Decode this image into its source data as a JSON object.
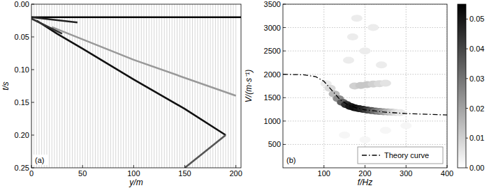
{
  "chart_data": [
    {
      "type": "wiggle",
      "panel_label": "(a)",
      "x_label": "y/m",
      "y_label": "t/s",
      "xlim": [
        0,
        205
      ],
      "ylim": [
        0.25,
        0
      ],
      "grid": false,
      "xticks": [
        0,
        50,
        100,
        150,
        200
      ],
      "yticks": [
        {
          "value": 0,
          "label": "0.00"
        },
        {
          "value": 0.05,
          "label": "0.05"
        },
        {
          "value": 0.1,
          "label": "0.10"
        },
        {
          "value": 0.15,
          "label": "0.15"
        },
        {
          "value": 0.2,
          "label": "0.20"
        },
        {
          "value": 0.25,
          "label": "0.25"
        }
      ],
      "traces": [
        0,
        2.5,
        5,
        7.5,
        10,
        12.5,
        15,
        17.5,
        20,
        22.5,
        25,
        27.5,
        30,
        32.5,
        35,
        37.5,
        40,
        42.5,
        45,
        47.5,
        50,
        52.5,
        55,
        57.5,
        60,
        62.5,
        65,
        67.5,
        70,
        72.5,
        75,
        77.5,
        80,
        82.5,
        85,
        87.5,
        90,
        92.5,
        95,
        97.5,
        100,
        102.5,
        105,
        107.5,
        110,
        112.5,
        115,
        117.5,
        120,
        122.5,
        125,
        127.5,
        130,
        132.5,
        135,
        137.5,
        140,
        142.5,
        145,
        147.5,
        150,
        152.5,
        155,
        157.5,
        160,
        162.5,
        165,
        167.5,
        170,
        172.5,
        175,
        177.5,
        180,
        182.5,
        185,
        187.5,
        190,
        192.5,
        195,
        197.5,
        200
      ],
      "series": [
        {
          "color": "#000000",
          "x": [
            0,
            205
          ],
          "values": [
            0.02,
            0.02
          ]
        },
        {
          "color": "#111111",
          "x": [
            5,
            25,
            50,
            100,
            150,
            190
          ],
          "values": [
            0.025,
            0.045,
            0.068,
            0.115,
            0.16,
            0.2
          ]
        },
        {
          "color": "#555555",
          "x": [
            190,
            170,
            150
          ],
          "values": [
            0.2,
            0.225,
            0.25
          ]
        },
        {
          "color": "#999999",
          "x": [
            20,
            100,
            200
          ],
          "values": [
            0.035,
            0.085,
            0.14
          ]
        },
        {
          "color": "#222222",
          "x": [
            0,
            45
          ],
          "values": [
            0.02,
            0.028
          ]
        },
        {
          "color": "#333333",
          "x": [
            0,
            30
          ],
          "values": [
            0.022,
            0.045
          ]
        }
      ]
    },
    {
      "type": "heatmap",
      "panel_label": "(b)",
      "x_label": "f/Hz",
      "y_label": "V/(m·s⁻¹)",
      "xlim": [
        0,
        400
      ],
      "ylim": [
        0,
        3500
      ],
      "grid": true,
      "legend": "lower right",
      "xticks": [
        100,
        200,
        300,
        400
      ],
      "yticks": [
        500,
        1000,
        1500,
        2000,
        2500,
        3000,
        3500
      ],
      "cells": {
        "f": [
          150,
          200,
          250,
          300,
          160,
          170,
          180,
          200,
          220,
          240,
          175,
          190,
          205,
          220,
          235,
          250,
          105,
          115,
          125,
          135,
          145,
          155,
          165,
          175,
          185,
          195,
          205,
          215,
          225,
          235,
          245,
          255,
          265,
          275,
          285
        ],
        "v": [
          700,
          600,
          800,
          900,
          2300,
          2800,
          3200,
          2500,
          3000,
          2200,
          1750,
          1760,
          1780,
          1790,
          1800,
          1810,
          1800,
          1700,
          1580,
          1480,
          1400,
          1350,
          1310,
          1285,
          1265,
          1250,
          1235,
          1225,
          1215,
          1205,
          1200,
          1195,
          1190,
          1185,
          1180
        ],
        "values": [
          0.002,
          0.002,
          0.002,
          0.002,
          0.004,
          0.004,
          0.004,
          0.004,
          0.004,
          0.004,
          0.01,
          0.012,
          0.012,
          0.01,
          0.008,
          0.006,
          0.004,
          0.008,
          0.015,
          0.025,
          0.035,
          0.045,
          0.05,
          0.052,
          0.05,
          0.047,
          0.043,
          0.038,
          0.032,
          0.027,
          0.022,
          0.017,
          0.012,
          0.008,
          0.005
        ]
      },
      "colorbar": {
        "lim": [
          0,
          0.055
        ],
        "ticks": [
          {
            "value": 0,
            "label": "0.00"
          },
          {
            "value": 0.01,
            "label": "0.01"
          },
          {
            "value": 0.02,
            "label": "0.02"
          },
          {
            "value": 0.03,
            "label": "0.03"
          },
          {
            "value": 0.04,
            "label": "0.04"
          },
          {
            "value": 0.05,
            "label": "0.05"
          }
        ]
      },
      "series": [
        {
          "name": "Theory curve",
          "color": "#000000",
          "line_style": "dashdot",
          "x": [
            0,
            50,
            80,
            100,
            120,
            140,
            160,
            180,
            200,
            250,
            300,
            350,
            400
          ],
          "values": [
            2000,
            1990,
            1950,
            1850,
            1650,
            1450,
            1340,
            1280,
            1240,
            1190,
            1160,
            1145,
            1130
          ]
        }
      ]
    }
  ]
}
